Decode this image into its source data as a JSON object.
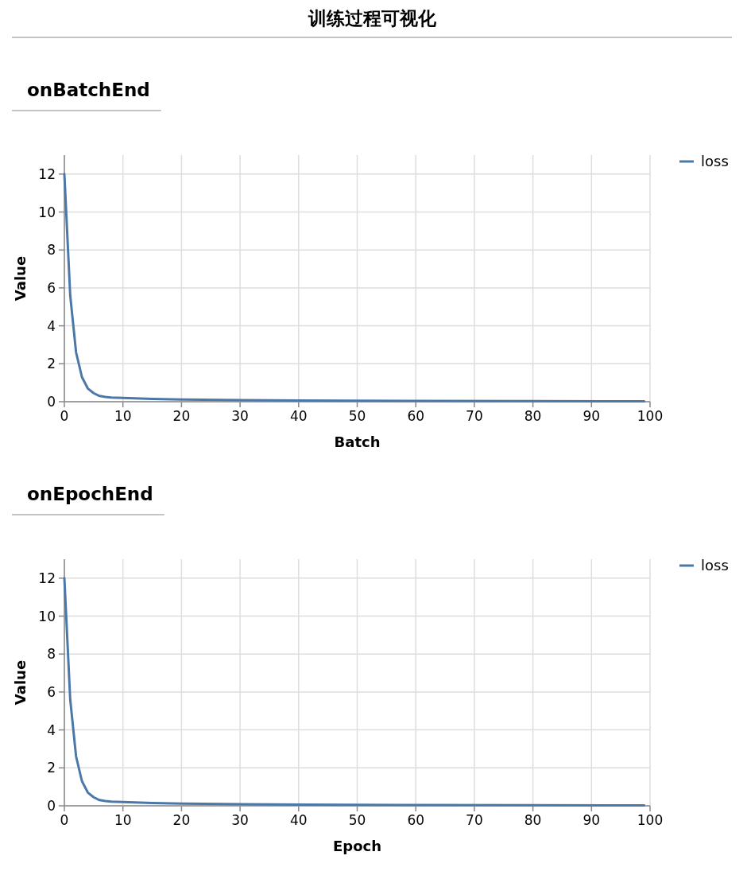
{
  "chart_data": [
    {
      "type": "line",
      "title": "训练过程可视化",
      "subtitle": "onBatchEnd",
      "xlabel": "Batch",
      "ylabel": "Value",
      "x": [
        0,
        1,
        2,
        3,
        4,
        5,
        6,
        7,
        8,
        10,
        15,
        20,
        30,
        40,
        60,
        80,
        99
      ],
      "series": [
        {
          "name": "loss",
          "color": "#4c78a8",
          "values": [
            12.0,
            5.6,
            2.6,
            1.3,
            0.7,
            0.45,
            0.3,
            0.25,
            0.22,
            0.2,
            0.15,
            0.12,
            0.08,
            0.06,
            0.04,
            0.03,
            0.02
          ]
        }
      ],
      "xlim": [
        0,
        100
      ],
      "xticks": [
        0,
        10,
        20,
        30,
        40,
        50,
        60,
        70,
        80,
        90,
        100
      ],
      "ylim": [
        0,
        13
      ],
      "yticks": [
        0,
        2,
        4,
        6,
        8,
        10,
        12
      ],
      "grid": true,
      "legend": "top right"
    },
    {
      "type": "line",
      "title": "onEpochEnd",
      "xlabel": "Epoch",
      "ylabel": "Value",
      "x": [
        0,
        1,
        2,
        3,
        4,
        5,
        6,
        7,
        8,
        10,
        15,
        20,
        30,
        40,
        60,
        80,
        99
      ],
      "series": [
        {
          "name": "loss",
          "color": "#4c78a8",
          "values": [
            12.0,
            5.6,
            2.6,
            1.3,
            0.7,
            0.45,
            0.3,
            0.25,
            0.22,
            0.2,
            0.15,
            0.12,
            0.08,
            0.06,
            0.04,
            0.03,
            0.02
          ]
        }
      ],
      "xlim": [
        0,
        100
      ],
      "xticks": [
        0,
        10,
        20,
        30,
        40,
        50,
        60,
        70,
        80,
        90,
        100
      ],
      "ylim": [
        0,
        13
      ],
      "yticks": [
        0,
        2,
        4,
        6,
        8,
        10,
        12
      ],
      "grid": true,
      "legend": "top right"
    }
  ]
}
